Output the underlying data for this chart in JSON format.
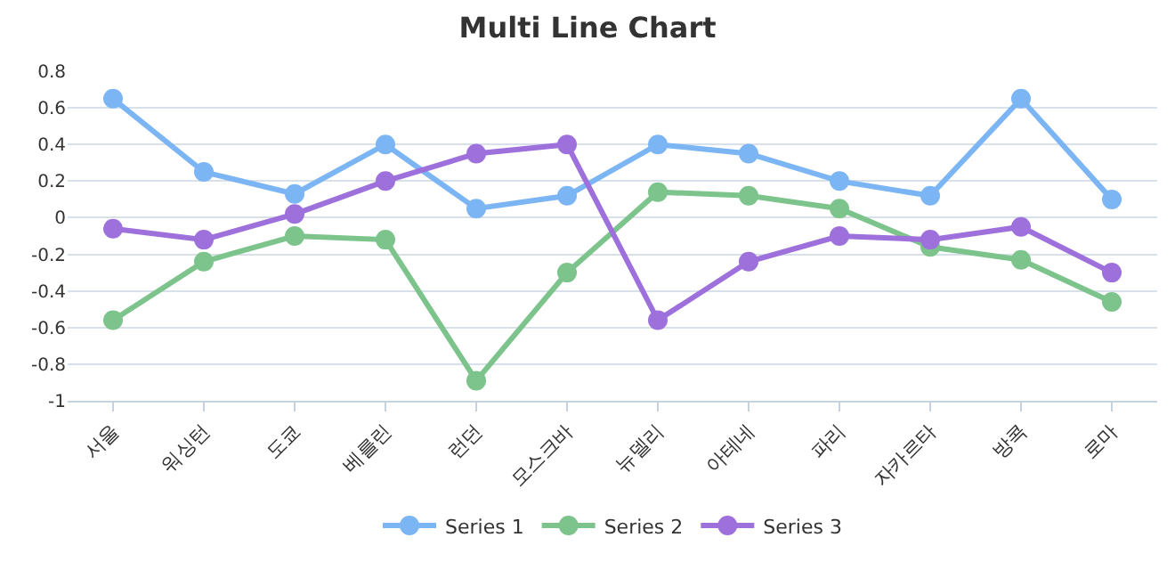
{
  "chart_data": {
    "type": "line",
    "title": "Multi Line Chart",
    "categories": [
      "서울",
      "워싱턴",
      "도쿄",
      "베를린",
      "런던",
      "모스크바",
      "뉴델리",
      "아테네",
      "파리",
      "자카르타",
      "방콕",
      "로마"
    ],
    "series": [
      {
        "name": "Series 1",
        "color": "#7cb5f4",
        "values": [
          0.65,
          0.25,
          0.13,
          0.4,
          0.05,
          0.12,
          0.4,
          0.35,
          0.2,
          0.12,
          0.65,
          0.1
        ]
      },
      {
        "name": "Series 2",
        "color": "#7cc48c",
        "values": [
          -0.56,
          -0.24,
          -0.1,
          -0.12,
          -0.89,
          -0.3,
          0.14,
          0.12,
          0.05,
          -0.16,
          -0.23,
          -0.46
        ]
      },
      {
        "name": "Series 3",
        "color": "#9d70dc",
        "values": [
          -0.06,
          -0.12,
          0.02,
          0.2,
          0.35,
          0.4,
          -0.56,
          -0.24,
          -0.1,
          -0.12,
          -0.05,
          -0.3
        ]
      }
    ],
    "ylim": [
      -1,
      0.8
    ],
    "yticks": [
      -1,
      -0.8,
      -0.6,
      -0.4,
      -0.2,
      0,
      0.2,
      0.4,
      0.6,
      0.8
    ],
    "grid": "y",
    "legend": "bottom",
    "marker": "circle",
    "line_style": "solid"
  }
}
